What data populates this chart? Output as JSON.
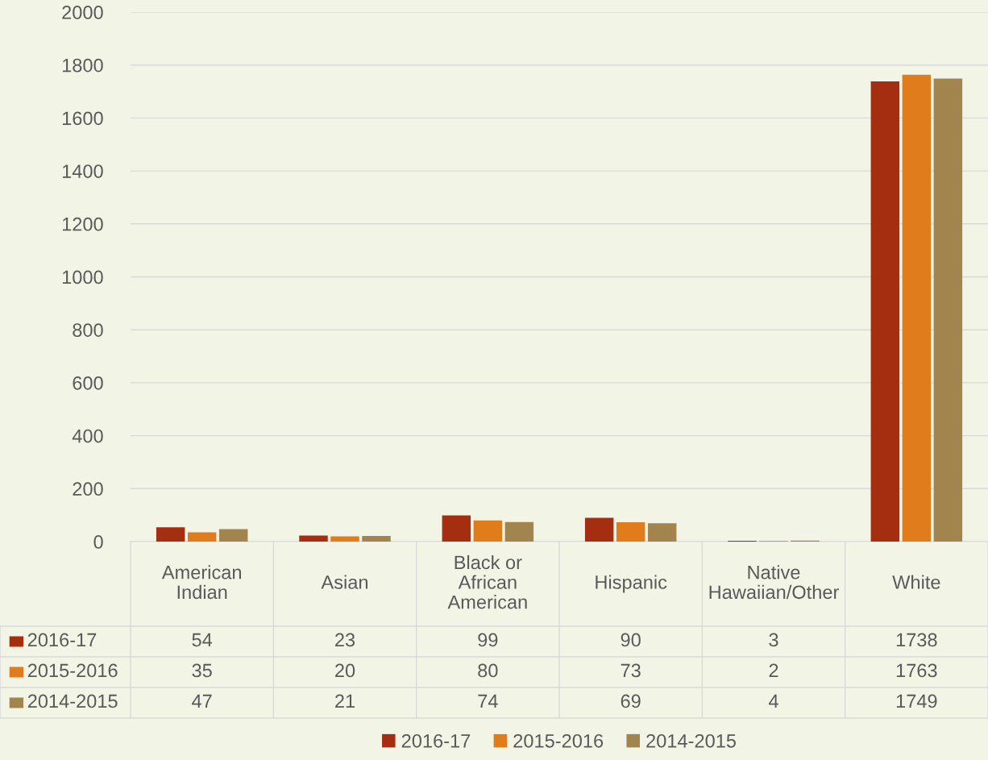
{
  "chart_data": {
    "type": "bar",
    "categories": [
      "American Indian",
      "Asian",
      "Black or African American",
      "Hispanic",
      "Native Hawaiian/Other",
      "White"
    ],
    "series": [
      {
        "name": "2016-17",
        "color": "#a52d10",
        "values": [
          54,
          23,
          99,
          90,
          3,
          1738
        ]
      },
      {
        "name": "2015-2016",
        "color": "#e07c1b",
        "values": [
          35,
          20,
          80,
          73,
          2,
          1763
        ]
      },
      {
        "name": "2014-2015",
        "color": "#a2844f",
        "values": [
          47,
          21,
          74,
          69,
          4,
          1749
        ]
      }
    ],
    "ylim": [
      0,
      2000
    ],
    "yticks": [
      0,
      200,
      400,
      600,
      800,
      1000,
      1200,
      1400,
      1600,
      1800,
      2000
    ],
    "grid": "y",
    "legend": "bottom",
    "data_labels": true
  }
}
